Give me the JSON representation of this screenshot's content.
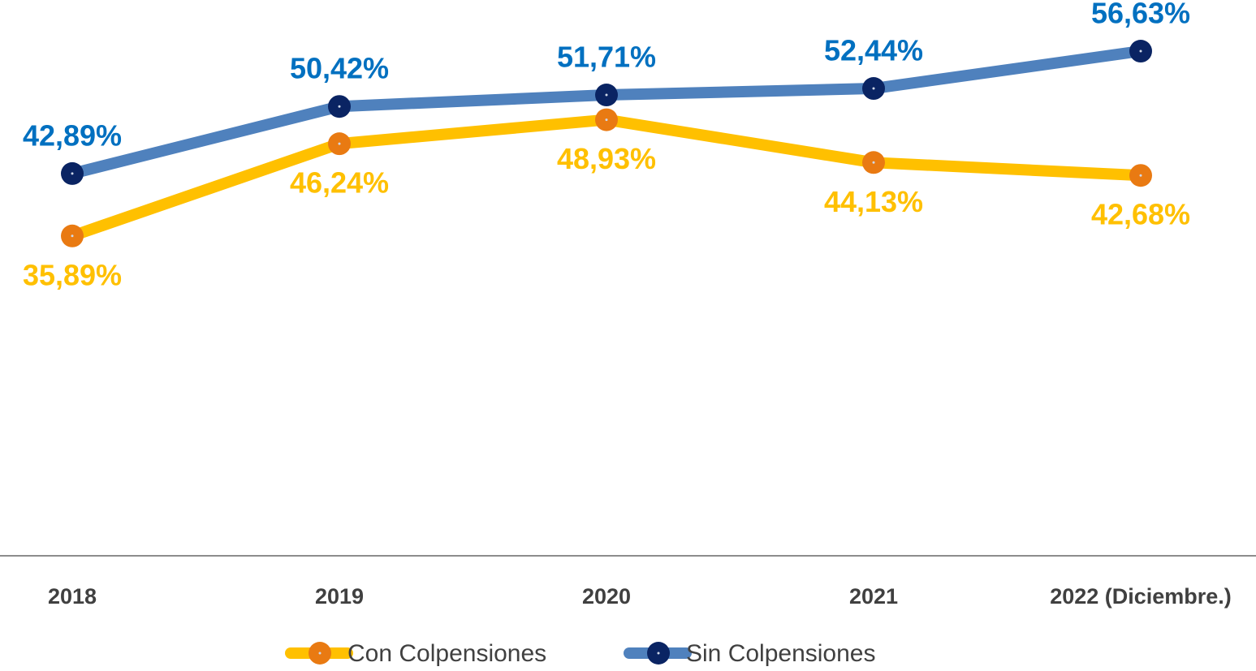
{
  "chart_data": {
    "type": "line",
    "categories": [
      "2018",
      "2019",
      "2020",
      "2021",
      "2022 (Diciembre.)"
    ],
    "ylim": [
      0,
      60
    ],
    "series": [
      {
        "name": "Con Colpensiones",
        "color": "#FFC000",
        "marker_color": "#E97A12",
        "label_color": "#FFC000",
        "label_position": "below",
        "values": [
          35.89,
          46.24,
          48.93,
          44.13,
          42.68
        ],
        "value_labels": [
          "35,89%",
          "46,24%",
          "48,93%",
          "44,13%",
          "42,68%"
        ]
      },
      {
        "name": "Sin Colpensiones",
        "color": "#4F81BD",
        "marker_color": "#0A2463",
        "label_color": "#0070C0",
        "label_position": "above",
        "values": [
          42.89,
          50.42,
          51.71,
          52.44,
          56.63
        ],
        "value_labels": [
          "42,89%",
          "50,42%",
          "51,71%",
          "52,44%",
          "56,63%"
        ]
      }
    ],
    "legend": "bottom"
  }
}
